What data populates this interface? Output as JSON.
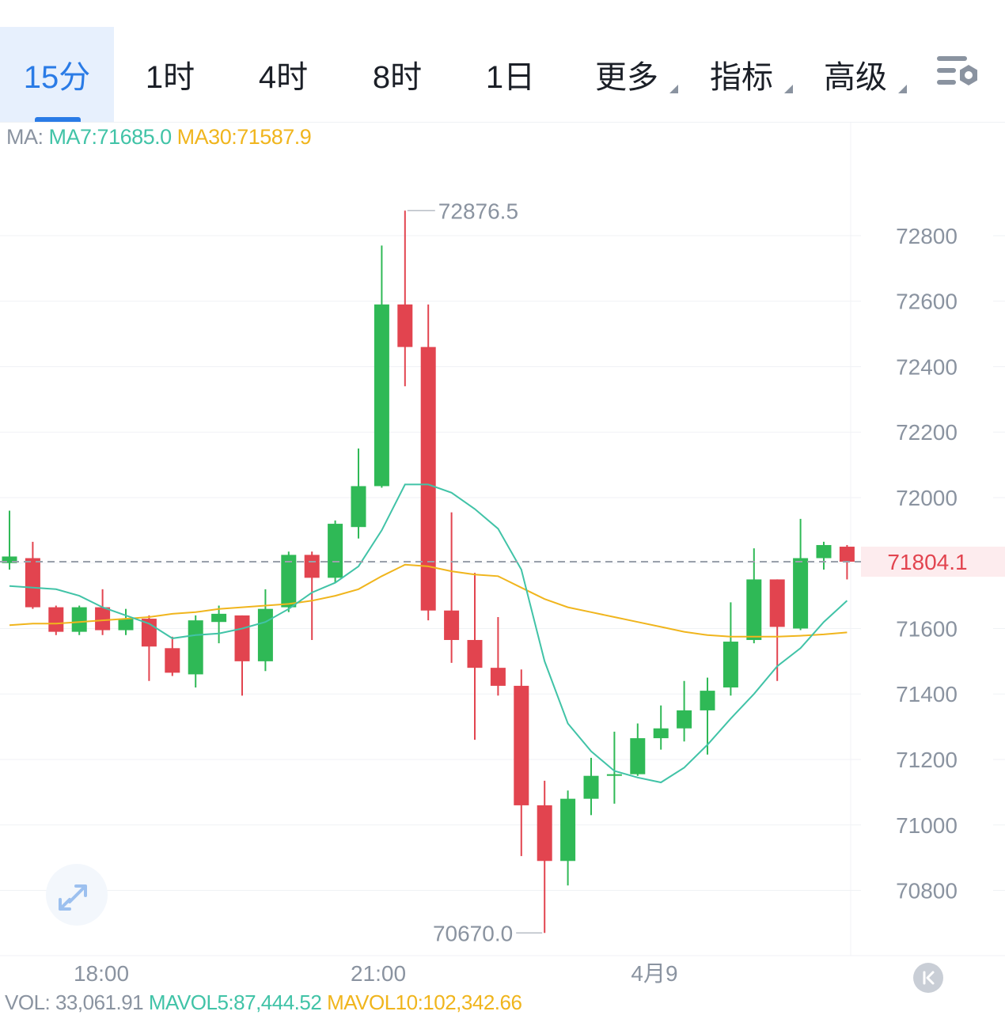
{
  "toolbar": {
    "tabs": [
      {
        "label": "15分",
        "active": true
      },
      {
        "label": "1时"
      },
      {
        "label": "4时"
      },
      {
        "label": "8时"
      },
      {
        "label": "1日"
      }
    ],
    "dropdowns": [
      {
        "label": "更多"
      },
      {
        "label": "指标"
      },
      {
        "label": "高级"
      }
    ],
    "settings_icon": "chart-settings-icon"
  },
  "ma_legend": {
    "prefix": "MA:",
    "ma7": "MA7:71685.0",
    "ma30": "MA30:71587.9"
  },
  "vol_legend": {
    "vol": "VOL: 33,061.91",
    "mavol5": "MAVOL5:87,444.52",
    "mavol10": "MAVOL10:102,342.66"
  },
  "colors": {
    "up": "#2fb956",
    "down": "#e2444f",
    "ma7": "#41c3a7",
    "ma30": "#f0b51d",
    "accent": "#2a7be6",
    "axis_text": "#8a93a0",
    "last_price": "#e2444f"
  },
  "icons": {
    "expand": "expand-icon",
    "scroll_latest": "scroll-to-latest-icon"
  },
  "chart_data": {
    "type": "candlestick",
    "x_labels": [
      "18:00",
      "21:00",
      "4月9"
    ],
    "y_ticks": [
      "72800",
      "72600",
      "72400",
      "72200",
      "72000",
      "71800",
      "71600",
      "71400",
      "71200",
      "71000",
      "70800"
    ],
    "ylim": [
      70620,
      72940
    ],
    "high_label": "72876.5",
    "low_label": "70670.0",
    "last_price": "71804.1",
    "candles": [
      {
        "o": 71800,
        "h": 71960,
        "l": 71780,
        "c": 71820
      },
      {
        "o": 71815,
        "h": 71865,
        "l": 71660,
        "c": 71665
      },
      {
        "o": 71665,
        "h": 71670,
        "l": 71580,
        "c": 71590
      },
      {
        "o": 71590,
        "h": 71670,
        "l": 71580,
        "c": 71665
      },
      {
        "o": 71665,
        "h": 71720,
        "l": 71580,
        "c": 71595
      },
      {
        "o": 71595,
        "h": 71660,
        "l": 71580,
        "c": 71630
      },
      {
        "o": 71630,
        "h": 71640,
        "l": 71440,
        "c": 71545
      },
      {
        "o": 71540,
        "h": 71575,
        "l": 71455,
        "c": 71465
      },
      {
        "o": 71460,
        "h": 71640,
        "l": 71420,
        "c": 71625
      },
      {
        "o": 71620,
        "h": 71670,
        "l": 71555,
        "c": 71645
      },
      {
        "o": 71640,
        "h": 71640,
        "l": 71395,
        "c": 71500
      },
      {
        "o": 71500,
        "h": 71720,
        "l": 71470,
        "c": 71660
      },
      {
        "o": 71665,
        "h": 71835,
        "l": 71650,
        "c": 71825
      },
      {
        "o": 71825,
        "h": 71835,
        "l": 71565,
        "c": 71755
      },
      {
        "o": 71755,
        "h": 71930,
        "l": 71740,
        "c": 71920
      },
      {
        "o": 71910,
        "h": 72150,
        "l": 71875,
        "c": 72035
      },
      {
        "o": 72035,
        "h": 72770,
        "l": 72030,
        "c": 72590
      },
      {
        "o": 72590,
        "h": 72876.5,
        "l": 72340,
        "c": 72460
      },
      {
        "o": 72460,
        "h": 72590,
        "l": 71625,
        "c": 71655
      },
      {
        "o": 71655,
        "h": 71955,
        "l": 71495,
        "c": 71565
      },
      {
        "o": 71565,
        "h": 71770,
        "l": 71260,
        "c": 71480
      },
      {
        "o": 71480,
        "h": 71635,
        "l": 71395,
        "c": 71425
      },
      {
        "o": 71425,
        "h": 71475,
        "l": 70905,
        "c": 71060
      },
      {
        "o": 71060,
        "h": 71135,
        "l": 70670,
        "c": 70890
      },
      {
        "o": 70890,
        "h": 71105,
        "l": 70815,
        "c": 71080
      },
      {
        "o": 71080,
        "h": 71205,
        "l": 71030,
        "c": 71150
      },
      {
        "o": 71150,
        "h": 71285,
        "l": 71065,
        "c": 71155
      },
      {
        "o": 71155,
        "h": 71310,
        "l": 71150,
        "c": 71265
      },
      {
        "o": 71265,
        "h": 71365,
        "l": 71230,
        "c": 71295
      },
      {
        "o": 71295,
        "h": 71440,
        "l": 71255,
        "c": 71350
      },
      {
        "o": 71350,
        "h": 71450,
        "l": 71215,
        "c": 71410
      },
      {
        "o": 71420,
        "h": 71680,
        "l": 71395,
        "c": 71560
      },
      {
        "o": 71565,
        "h": 71845,
        "l": 71555,
        "c": 71750
      },
      {
        "o": 71750,
        "h": 71750,
        "l": 71440,
        "c": 71605
      },
      {
        "o": 71600,
        "h": 71935,
        "l": 71595,
        "c": 71815
      },
      {
        "o": 71815,
        "h": 71865,
        "l": 71780,
        "c": 71855
      },
      {
        "o": 71850,
        "h": 71855,
        "l": 71750,
        "c": 71804.1
      }
    ],
    "ma7": [
      71730,
      71725,
      71720,
      71700,
      71665,
      71640,
      71615,
      71570,
      71580,
      71585,
      71600,
      71620,
      71660,
      71710,
      71740,
      71790,
      71900,
      72040,
      72040,
      72015,
      71965,
      71905,
      71780,
      71500,
      71310,
      71225,
      71165,
      71145,
      71130,
      71175,
      71245,
      71325,
      71400,
      71485,
      71540,
      71620,
      71685
    ],
    "ma30": [
      71610,
      71615,
      71615,
      71620,
      71625,
      71630,
      71635,
      71645,
      71650,
      71660,
      71665,
      71670,
      71675,
      71685,
      71700,
      71720,
      71760,
      71795,
      71790,
      71775,
      71765,
      71760,
      71725,
      71690,
      71665,
      71650,
      71635,
      71620,
      71605,
      71590,
      71580,
      71575,
      71575,
      71575,
      71578,
      71582,
      71588
    ]
  }
}
